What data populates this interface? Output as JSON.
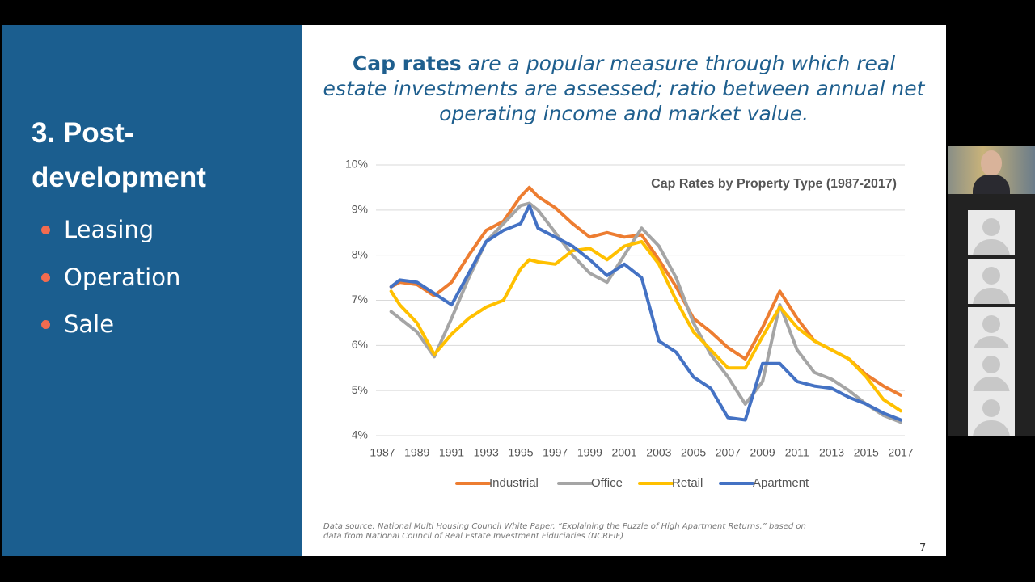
{
  "slide": {
    "heading": "3. Post-development",
    "bullets": [
      "Leasing",
      "Operation",
      "Sale"
    ],
    "header_bold": "Cap rates",
    "header_rest": "are a popular measure through which real estate investments are assessed; ratio between annual net operating income and market value.",
    "source": "Data source: National Multi Housing Council White Paper, “Explaining the Puzzle of High Apartment Returns,”  based on data from National Council of Real Estate Investment Fiduciaries (NCREIF)",
    "page_number": "7"
  },
  "chart_data": {
    "type": "line",
    "title": "Cap Rates by Property Type (1987-2017)",
    "x": [
      1987.5,
      1988,
      1989,
      1990,
      1991,
      1992,
      1993,
      1994,
      1995,
      1995.5,
      1996,
      1997,
      1998,
      1999,
      2000,
      2001,
      2002,
      2003,
      2004,
      2005,
      2006,
      2007,
      2008,
      2009,
      2010,
      2011,
      2012,
      2013,
      2014,
      2015,
      2016,
      2017
    ],
    "series": [
      {
        "name": "Industrial",
        "color": "#ed7d31",
        "values": [
          7.3,
          7.4,
          7.35,
          7.1,
          7.4,
          8.0,
          8.55,
          8.75,
          9.3,
          9.5,
          9.3,
          9.05,
          8.7,
          8.4,
          8.5,
          8.4,
          8.45,
          7.9,
          7.3,
          6.6,
          6.3,
          5.95,
          5.7,
          6.4,
          7.2,
          6.6,
          6.1,
          5.9,
          5.7,
          5.35,
          5.1,
          4.9
        ]
      },
      {
        "name": "Office",
        "color": "#a5a5a5",
        "values": [
          6.75,
          6.6,
          6.3,
          5.75,
          6.6,
          7.5,
          8.3,
          8.7,
          9.1,
          9.15,
          9.0,
          8.5,
          8.0,
          7.6,
          7.4,
          8.0,
          8.6,
          8.2,
          7.5,
          6.5,
          5.8,
          5.3,
          4.7,
          5.2,
          6.9,
          5.9,
          5.4,
          5.25,
          5.0,
          4.7,
          4.45,
          4.3
        ]
      },
      {
        "name": "Retail",
        "color": "#ffc000",
        "values": [
          7.2,
          6.9,
          6.5,
          5.8,
          6.25,
          6.6,
          6.85,
          7.0,
          7.7,
          7.9,
          7.85,
          7.8,
          8.1,
          8.15,
          7.9,
          8.2,
          8.3,
          7.8,
          7.0,
          6.3,
          5.9,
          5.5,
          5.5,
          6.2,
          6.85,
          6.4,
          6.1,
          5.9,
          5.7,
          5.3,
          4.8,
          4.55
        ]
      },
      {
        "name": "Apartment",
        "color": "#4472c4",
        "values": [
          7.3,
          7.45,
          7.4,
          7.15,
          6.9,
          7.6,
          8.3,
          8.55,
          8.7,
          9.1,
          8.6,
          8.4,
          8.2,
          7.9,
          7.55,
          7.8,
          7.5,
          6.1,
          5.85,
          5.3,
          5.05,
          4.4,
          4.35,
          5.6,
          5.6,
          5.2,
          5.1,
          5.05,
          4.85,
          4.7,
          4.5,
          4.35
        ]
      }
    ],
    "xlim": [
      1987,
      2017
    ],
    "xticks": [
      1987,
      1989,
      1991,
      1993,
      1995,
      1997,
      1999,
      2001,
      2003,
      2005,
      2007,
      2009,
      2011,
      2013,
      2015,
      2017
    ],
    "ylim": [
      4,
      10
    ],
    "yticks": [
      {
        "value": 4,
        "label": "4%"
      },
      {
        "value": 5,
        "label": "5%"
      },
      {
        "value": 6,
        "label": "6%"
      },
      {
        "value": 7,
        "label": "7%"
      },
      {
        "value": 8,
        "label": "8%"
      },
      {
        "value": 9,
        "label": "9%"
      },
      {
        "value": 10,
        "label": "10%"
      }
    ],
    "grid": true,
    "legend": "bottom"
  }
}
